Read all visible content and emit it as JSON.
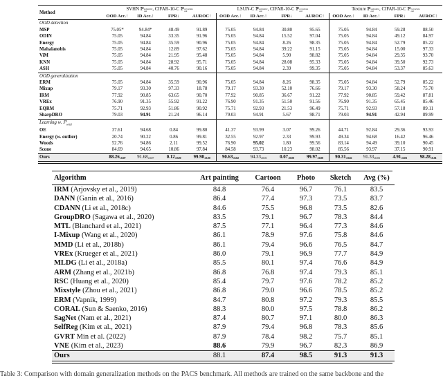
{
  "table1": {
    "method_header": "Method",
    "metric_headers": [
      "OOD Acc.↑",
      "ID Acc.↑",
      "FPR↓",
      "AUROC↑"
    ],
    "groups": [
      {
        "ds1": "SVHN",
        "sup1": "semantic",
        "sub1": "out",
        "ds2": "CIFAR-10-C",
        "sup2": "covariate",
        "sub2": "out"
      },
      {
        "ds1": "LSUN-C",
        "sup1": "semantic",
        "sub1": "out",
        "ds2": "CIFAR-10-C",
        "sup2": "covariate",
        "sub2": "out"
      },
      {
        "ds1": "Texture",
        "sup1": "semantic",
        "sub1": "out",
        "ds2": "CIFAR-10-C",
        "sup2": "covariate",
        "sub2": "out"
      }
    ],
    "sections": [
      {
        "label": "OOD detection",
        "label_sub": "",
        "rows": [
          {
            "method": "MSP",
            "values": [
              "75.05*",
              "94.84*",
              "48.49",
              "91.89",
              "75.05",
              "94.84",
              "30.80",
              "95.65",
              "75.05",
              "94.84",
              "59.28",
              "88.50"
            ],
            "bold": []
          },
          {
            "method": "ODIN",
            "values": [
              "75.05",
              "94.84",
              "33.35",
              "91.96",
              "75.05",
              "94.84",
              "15.52",
              "97.04",
              "75.05",
              "94.84",
              "49.12",
              "84.97"
            ],
            "bold": []
          },
          {
            "method": "Energy",
            "values": [
              "75.05",
              "94.84",
              "35.59",
              "90.96",
              "75.05",
              "94.84",
              "8.26",
              "98.35",
              "75.05",
              "94.84",
              "52.79",
              "85.22"
            ],
            "bold": []
          },
          {
            "method": "Mahalanobis",
            "values": [
              "75.05",
              "94.84",
              "12.89",
              "97.62",
              "75.05",
              "94.84",
              "39.22",
              "91.15",
              "75.05",
              "94.84",
              "15.00",
              "97.33"
            ],
            "bold": []
          },
          {
            "method": "ViM",
            "values": [
              "75.05",
              "94.84",
              "21.95",
              "95.48",
              "75.05",
              "94.84",
              "5.90",
              "98.82",
              "75.05",
              "94.84",
              "29.35",
              "93.70"
            ],
            "bold": []
          },
          {
            "method": "KNN",
            "values": [
              "75.05",
              "94.84",
              "28.92",
              "95.71",
              "75.05",
              "94.84",
              "28.08",
              "95.33",
              "75.05",
              "94.84",
              "39.50",
              "92.73"
            ],
            "bold": []
          },
          {
            "method": "ASH",
            "values": [
              "75.05",
              "94.84",
              "40.76",
              "90.16",
              "75.05",
              "94.84",
              "2.39",
              "99.35",
              "75.05",
              "94.84",
              "53.37",
              "85.63"
            ],
            "bold": []
          }
        ]
      },
      {
        "label": "OOD generalization",
        "label_sub": "",
        "rows": [
          {
            "method": "ERM",
            "values": [
              "75.05",
              "94.84",
              "35.59",
              "90.96",
              "75.05",
              "94.84",
              "8.26",
              "98.35",
              "75.05",
              "94.84",
              "52.79",
              "85.22"
            ],
            "bold": []
          },
          {
            "method": "Mixup",
            "values": [
              "79.17",
              "93.30",
              "97.33",
              "18.78",
              "79.17",
              "93.30",
              "52.10",
              "76.66",
              "79.17",
              "93.30",
              "58.24",
              "75.70"
            ],
            "bold": []
          },
          {
            "method": "IRM",
            "values": [
              "77.92",
              "90.85",
              "63.65",
              "90.70",
              "77.92",
              "90.85",
              "36.67",
              "91.22",
              "77.92",
              "90.85",
              "59.42",
              "87.81"
            ],
            "bold": []
          },
          {
            "method": "VREx",
            "values": [
              "76.90",
              "91.35",
              "55.92",
              "91.22",
              "76.90",
              "91.35",
              "51.50",
              "91.56",
              "76.90",
              "91.35",
              "65.45",
              "85.46"
            ],
            "bold": []
          },
          {
            "method": "EQRM",
            "values": [
              "75.71",
              "92.93",
              "51.86",
              "90.92",
              "75.71",
              "92.93",
              "21.53",
              "96.49",
              "75.71",
              "92.93",
              "57.18",
              "89.11"
            ],
            "bold": []
          },
          {
            "method": "SharpDRO",
            "values": [
              "79.03",
              "94.91",
              "21.24",
              "96.14",
              "79.03",
              "94.91",
              "5.67",
              "98.71",
              "79.03",
              "94.91",
              "42.94",
              "89.99"
            ],
            "bold": [
              1,
              9
            ]
          }
        ]
      },
      {
        "label": "Learning w. ℙ",
        "label_sub": "wild",
        "rows": [
          {
            "method": "OE",
            "values": [
              "37.61",
              "94.68",
              "0.84",
              "99.80",
              "41.37",
              "93.99",
              "3.07",
              "99.26",
              "44.71",
              "92.84",
              "29.36",
              "93.93"
            ],
            "bold": []
          },
          {
            "method": "Energy (w. outlier)",
            "values": [
              "20.74",
              "90.22",
              "0.86",
              "99.81",
              "32.55",
              "92.97",
              "2.33",
              "99.93",
              "49.34",
              "94.68",
              "16.42",
              "96.46"
            ],
            "bold": []
          },
          {
            "method": "Woods",
            "values": [
              "52.76",
              "94.86",
              "2.11",
              "99.52",
              "76.90",
              "95.02",
              "1.80",
              "99.56",
              "83.14",
              "94.49",
              "39.10",
              "90.45"
            ],
            "bold": [
              5
            ]
          },
          {
            "method": "Scone",
            "values": [
              "84.69",
              "94.65",
              "10.86",
              "97.84",
              "84.58",
              "93.73",
              "10.23",
              "98.02",
              "85.56",
              "93.97",
              "37.15",
              "90.91"
            ],
            "bold": []
          },
          {
            "method": "Ours",
            "highlight": true,
            "values": [
              "88.26±0.07",
              "91.68±0.07",
              "0.12±0.00",
              "99.98±0.00",
              "90.63±0.02",
              "94.33±0.01",
              "0.07±0.00",
              "99.97±0.00",
              "90.31±0.02",
              "91.33±0.03",
              "4.91±0.03",
              "98.28±0.01"
            ],
            "bold": [
              0,
              2,
              3,
              4,
              6,
              7,
              8,
              10,
              11
            ]
          }
        ]
      }
    ]
  },
  "table2": {
    "headers": [
      "Algorithm",
      "Art painting",
      "Cartoon",
      "Photo",
      "Sketch",
      "Avg (%)"
    ],
    "rows": [
      {
        "name": "IRM",
        "cite": "(Arjovsky et al., 2019)",
        "values": [
          "84.8",
          "76.4",
          "96.7",
          "76.1",
          "83.5"
        ],
        "bold": []
      },
      {
        "name": "DANN",
        "cite": "(Ganin et al., 2016)",
        "values": [
          "86.4",
          "77.4",
          "97.3",
          "73.5",
          "83.7"
        ],
        "bold": []
      },
      {
        "name": "CDANN",
        "cite": "(Li et al., 2018c)",
        "values": [
          "84.6",
          "75.5",
          "96.8",
          "73.5",
          "82.6"
        ],
        "bold": []
      },
      {
        "name": "GroupDRO",
        "cite": "(Sagawa et al., 2020)",
        "values": [
          "83.5",
          "79.1",
          "96.7",
          "78.3",
          "84.4"
        ],
        "bold": []
      },
      {
        "name": "MTL",
        "cite": "(Blanchard et al., 2021)",
        "values": [
          "87.5",
          "77.1",
          "96.4",
          "77.3",
          "84.6"
        ],
        "bold": []
      },
      {
        "name": "I-Mixup",
        "cite": "(Wang et al., 2020)",
        "values": [
          "86.1",
          "78.9",
          "97.6",
          "75.8",
          "84.6"
        ],
        "bold": []
      },
      {
        "name": "MMD",
        "cite": "(Li et al., 2018b)",
        "values": [
          "86.1",
          "79.4",
          "96.6",
          "76.5",
          "84.7"
        ],
        "bold": []
      },
      {
        "name": "VREx",
        "cite": "(Krueger et al., 2021)",
        "values": [
          "86.0",
          "79.1",
          "96.9",
          "77.7",
          "84.9"
        ],
        "bold": []
      },
      {
        "name": "MLDG",
        "cite": "(Li et al., 2018a)",
        "values": [
          "85.5",
          "80.1",
          "97.4",
          "76.6",
          "84.9"
        ],
        "bold": []
      },
      {
        "name": "ARM",
        "cite": "(Zhang et al., 2021b)",
        "values": [
          "86.8",
          "76.8",
          "97.4",
          "79.3",
          "85.1"
        ],
        "bold": []
      },
      {
        "name": "RSC",
        "cite": "(Huang et al., 2020)",
        "values": [
          "85.4",
          "79.7",
          "97.6",
          "78.2",
          "85.2"
        ],
        "bold": []
      },
      {
        "name": "Mixstyle",
        "cite": "(Zhou et al., 2021)",
        "values": [
          "86.8",
          "79.0",
          "96.6",
          "78.5",
          "85.2"
        ],
        "bold": []
      },
      {
        "name": "ERM",
        "cite": "(Vapnik, 1999)",
        "values": [
          "84.7",
          "80.8",
          "97.2",
          "79.3",
          "85.5"
        ],
        "bold": []
      },
      {
        "name": "CORAL",
        "cite": "(Sun & Saenko, 2016)",
        "values": [
          "88.3",
          "80.0",
          "97.5",
          "78.8",
          "86.2"
        ],
        "bold": []
      },
      {
        "name": "SagNet",
        "cite": "(Nam et al., 2021)",
        "values": [
          "87.4",
          "80.7",
          "97.1",
          "80.0",
          "86.3"
        ],
        "bold": []
      },
      {
        "name": "SelfReg",
        "cite": "(Kim et al., 2021)",
        "values": [
          "87.9",
          "79.4",
          "96.8",
          "78.3",
          "85.6"
        ],
        "bold": []
      },
      {
        "name": "GVRT",
        "cite": "Min et al. (2022)",
        "values": [
          "87.9",
          "78.4",
          "98.2",
          "75.7",
          "85.1"
        ],
        "bold": []
      },
      {
        "name": "VNE",
        "cite": "(Kim et al., 2023)",
        "values": [
          "88.6",
          "79.9",
          "96.7",
          "82.3",
          "86.9"
        ],
        "bold": [
          0
        ]
      },
      {
        "name": "Ours",
        "cite": "",
        "highlight": true,
        "values": [
          "88.1",
          "87.4",
          "98.5",
          "91.3",
          "91.3"
        ],
        "bold": [
          1,
          2,
          3,
          4
        ]
      }
    ]
  },
  "caption": "Table 3:  Comparison with domain generalization methods on the PACS benchmark. All methods are trained on the same backbone and the"
}
